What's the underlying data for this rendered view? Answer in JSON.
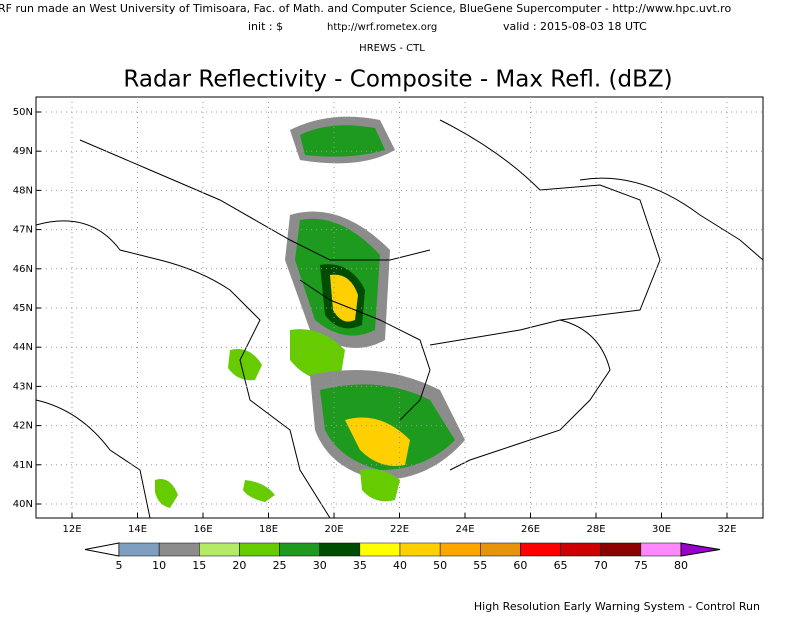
{
  "header": {
    "run_info": "RF run made an West University of Timisoara, Fac. of Math. and Computer Science, BlueGene Supercomputer - http://www.hpc.uvt.ro",
    "init": "init : $",
    "url": "http://wrf.rometex.org",
    "valid": "valid : 2015-08-03  18 UTC",
    "model": "HREWS - CTL",
    "title": "Radar Reflectivity - Composite - Max Refl. (dBZ)"
  },
  "map": {
    "lat_labels": [
      "50N",
      "49N",
      "48N",
      "47N",
      "46N",
      "45N",
      "44N",
      "43N",
      "42N",
      "41N",
      "40N"
    ],
    "lon_labels": [
      "12E",
      "14E",
      "16E",
      "18E",
      "20E",
      "22E",
      "24E",
      "26E",
      "28E",
      "30E",
      "32E"
    ]
  },
  "colorbar": {
    "levels": [
      5,
      10,
      15,
      20,
      25,
      30,
      35,
      40,
      50,
      55,
      60,
      65,
      70,
      75,
      80
    ],
    "colors": [
      "#7f9fc0",
      "#8c8c8c",
      "#b4ea66",
      "#66cc00",
      "#1e9a1e",
      "#004d00",
      "#ffff00",
      "#ffd000",
      "#ffa500",
      "#e8940a",
      "#ff0000",
      "#cc0000",
      "#8b0000",
      "#ff88ff"
    ],
    "under_color": "#ffffff",
    "over_color": "#9900cc"
  },
  "footer": "High Resolution Early Warning System - Control Run"
}
